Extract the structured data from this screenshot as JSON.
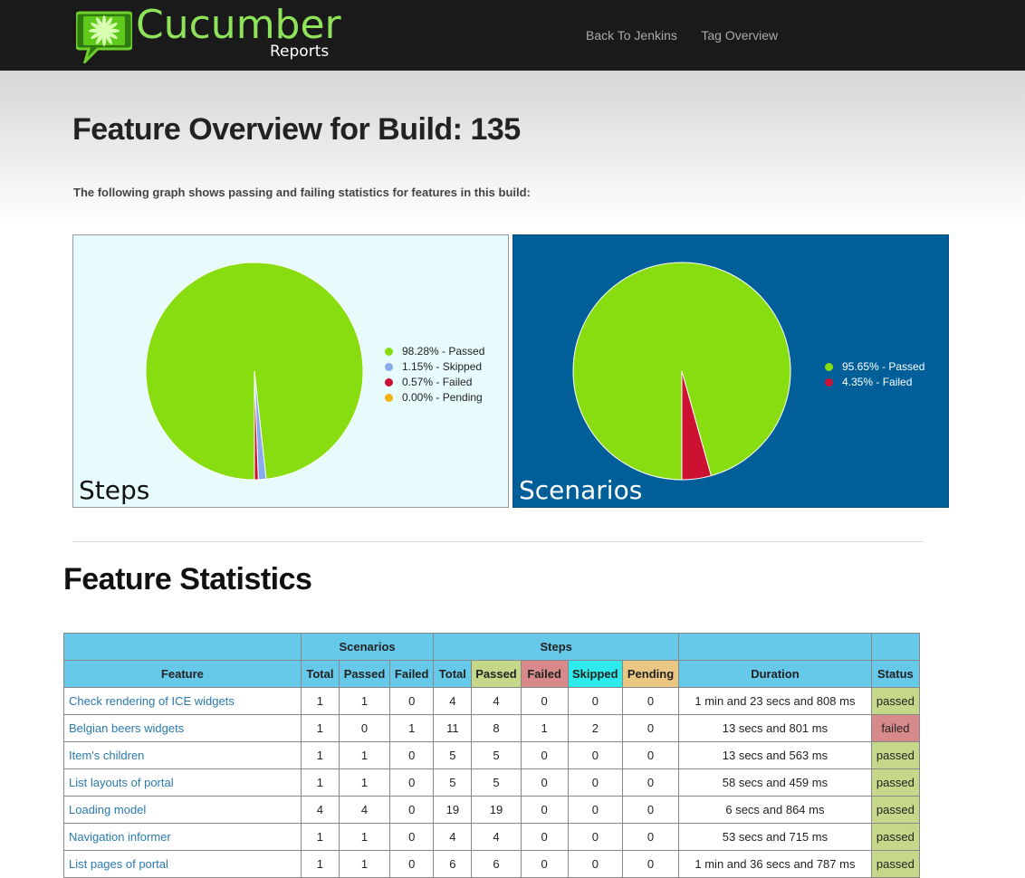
{
  "header": {
    "logo_title": "Cucumber",
    "logo_subtitle": "Reports",
    "nav": [
      "Back To Jenkins",
      "Tag Overview"
    ]
  },
  "page_title": "Feature Overview for Build: 135",
  "intro": "The following graph shows passing and failing statistics for features in this build:",
  "chart_data": [
    {
      "type": "pie",
      "title": "Steps",
      "slices": [
        {
          "label": "98.28% - Passed",
          "value": 98.28,
          "color": "#88dd11"
        },
        {
          "label": "1.15% - Skipped",
          "value": 1.15,
          "color": "#88aaee"
        },
        {
          "label": "0.57% - Failed",
          "value": 0.57,
          "color": "#cc1133"
        },
        {
          "label": "0.00% - Pending",
          "value": 0.0,
          "color": "#f4b212"
        }
      ]
    },
    {
      "type": "pie",
      "title": "Scenarios",
      "slices": [
        {
          "label": "95.65% - Passed",
          "value": 95.65,
          "color": "#88dd11"
        },
        {
          "label": "4.35% - Failed",
          "value": 4.35,
          "color": "#cc1133"
        }
      ]
    }
  ],
  "section_title": "Feature Statistics",
  "table": {
    "group_headers": {
      "scenarios": "Scenarios",
      "steps": "Steps"
    },
    "columns": {
      "feature": "Feature",
      "sc_total": "Total",
      "sc_passed": "Passed",
      "sc_failed": "Failed",
      "st_total": "Total",
      "st_passed": "Passed",
      "st_failed": "Failed",
      "st_skipped": "Skipped",
      "st_pending": "Pending",
      "duration": "Duration",
      "status": "Status"
    },
    "rows": [
      {
        "feature": "Check rendering of ICE widgets",
        "sc_total": "1",
        "sc_passed": "1",
        "sc_failed": "0",
        "st_total": "4",
        "st_passed": "4",
        "st_failed": "0",
        "st_skipped": "0",
        "st_pending": "0",
        "duration": "1 min and 23 secs and 808 ms",
        "status": "passed"
      },
      {
        "feature": "Belgian beers widgets",
        "sc_total": "1",
        "sc_passed": "0",
        "sc_failed": "1",
        "st_total": "11",
        "st_passed": "8",
        "st_failed": "1",
        "st_skipped": "2",
        "st_pending": "0",
        "duration": "13 secs and 801 ms",
        "status": "failed"
      },
      {
        "feature": "Item's children",
        "sc_total": "1",
        "sc_passed": "1",
        "sc_failed": "0",
        "st_total": "5",
        "st_passed": "5",
        "st_failed": "0",
        "st_skipped": "0",
        "st_pending": "0",
        "duration": "13 secs and 563 ms",
        "status": "passed"
      },
      {
        "feature": "List layouts of portal",
        "sc_total": "1",
        "sc_passed": "1",
        "sc_failed": "0",
        "st_total": "5",
        "st_passed": "5",
        "st_failed": "0",
        "st_skipped": "0",
        "st_pending": "0",
        "duration": "58 secs and 459 ms",
        "status": "passed"
      },
      {
        "feature": "Loading model",
        "sc_total": "4",
        "sc_passed": "4",
        "sc_failed": "0",
        "st_total": "19",
        "st_passed": "19",
        "st_failed": "0",
        "st_skipped": "0",
        "st_pending": "0",
        "duration": "6 secs and 864 ms",
        "status": "passed"
      },
      {
        "feature": "Navigation informer",
        "sc_total": "1",
        "sc_passed": "1",
        "sc_failed": "0",
        "st_total": "4",
        "st_passed": "4",
        "st_failed": "0",
        "st_skipped": "0",
        "st_pending": "0",
        "duration": "53 secs and 715 ms",
        "status": "passed"
      },
      {
        "feature": "List pages of portal",
        "sc_total": "1",
        "sc_passed": "1",
        "sc_failed": "0",
        "st_total": "6",
        "st_passed": "6",
        "st_failed": "0",
        "st_skipped": "0",
        "st_pending": "0",
        "duration": "1 min and 36 secs and 787 ms",
        "status": "passed"
      }
    ]
  }
}
